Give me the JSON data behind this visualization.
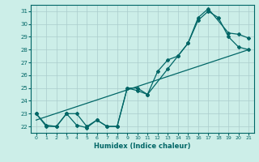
{
  "xlabel": "Humidex (Indice chaleur)",
  "bg_color": "#cceee8",
  "grid_color": "#aacccc",
  "line_color": "#006666",
  "xlim": [
    -0.5,
    21.5
  ],
  "ylim": [
    21.5,
    31.5
  ],
  "xticks": [
    0,
    1,
    2,
    3,
    4,
    5,
    6,
    7,
    8,
    9,
    10,
    11,
    12,
    13,
    14,
    15,
    16,
    17,
    18,
    19,
    20,
    21
  ],
  "yticks": [
    22,
    23,
    24,
    25,
    26,
    27,
    28,
    29,
    30,
    31
  ],
  "line1_x": [
    0,
    1,
    2,
    3,
    4,
    5,
    6,
    7,
    8,
    9,
    10,
    11,
    13,
    14,
    15,
    16,
    17,
    19,
    20,
    21
  ],
  "line1_y": [
    23,
    22,
    22,
    23,
    22.1,
    21.9,
    22.5,
    22,
    22,
    25,
    25,
    24.5,
    26.5,
    27.5,
    28.5,
    30.5,
    31.2,
    29.3,
    29.2,
    28.9
  ],
  "line2_x": [
    0,
    1,
    2,
    3,
    4,
    5,
    6,
    7,
    8,
    9,
    10,
    11,
    12,
    13,
    14,
    15,
    16,
    17,
    18,
    19,
    20,
    21
  ],
  "line2_y": [
    23,
    22.1,
    22,
    23,
    23,
    22,
    22.5,
    22,
    22,
    25,
    24.8,
    24.5,
    26.3,
    27.2,
    27.5,
    28.5,
    30.3,
    31,
    30.5,
    29,
    28.2,
    28.0
  ],
  "line3_x": [
    0,
    21
  ],
  "line3_y": [
    22.5,
    28.0
  ]
}
